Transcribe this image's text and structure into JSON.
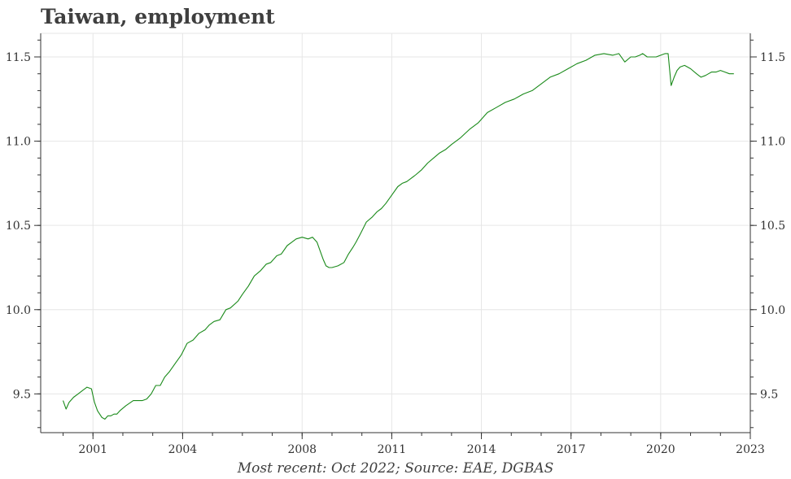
{
  "chart_data": {
    "type": "line",
    "title": "Taiwan, employment",
    "caption": "Most recent: Oct 2022; Source: EAE, DGBAS",
    "xlim": [
      1999.25,
      2023.0
    ],
    "ylim": [
      9.27,
      11.64
    ],
    "x_ticks": [
      2001,
      2004,
      2008,
      2011,
      2014,
      2017,
      2020,
      2023
    ],
    "y_ticks": [
      9.5,
      10.0,
      10.5,
      11.0,
      11.5
    ],
    "y_tick_labels": [
      "9.5",
      "10.0",
      "10.5",
      "11.0",
      "11.5"
    ],
    "grid": true,
    "line_color": "#1a8a1a",
    "series": [
      {
        "x": [
          2000.0,
          2000.1,
          2000.2,
          2000.35,
          2000.5,
          2000.65,
          2000.8,
          2000.95,
          2001.05,
          2001.15,
          2001.3,
          2001.4,
          2001.5,
          2001.6,
          2001.7,
          2001.8,
          2001.9,
          2002.1,
          2002.35,
          2002.5,
          2002.65,
          2002.8,
          2002.95,
          2003.1,
          2003.25,
          2003.4,
          2003.55,
          2003.75,
          2003.95,
          2004.15,
          2004.35,
          2004.55,
          2004.75,
          2004.9,
          2005.05,
          2005.25,
          2005.45,
          2005.6,
          2005.85,
          2006.0,
          2006.2,
          2006.4,
          2006.6,
          2006.8,
          2006.95,
          2007.15,
          2007.3,
          2007.5,
          2007.65,
          2007.8,
          2008.0,
          2008.2,
          2008.35,
          2008.5,
          2008.6,
          2008.7,
          2008.8,
          2008.9,
          2009.0,
          2009.2,
          2009.4,
          2009.55,
          2009.7,
          2009.8,
          2009.95,
          2010.15,
          2010.35,
          2010.5,
          2010.65,
          2010.8,
          2011.0,
          2011.2,
          2011.35,
          2011.5,
          2011.65,
          2011.8,
          2012.0,
          2012.2,
          2012.4,
          2012.6,
          2012.8,
          2013.0,
          2013.3,
          2013.6,
          2013.9,
          2014.2,
          2014.5,
          2014.8,
          2015.1,
          2015.4,
          2015.7,
          2016.0,
          2016.3,
          2016.6,
          2016.9,
          2017.2,
          2017.5,
          2017.8,
          2018.1,
          2018.4,
          2018.6,
          2018.8,
          2019.0,
          2019.15,
          2019.3,
          2019.4,
          2019.55,
          2019.7,
          2019.85,
          2020.0,
          2020.15,
          2020.25,
          2020.35,
          2020.45,
          2020.55,
          2020.65,
          2020.8,
          2021.0,
          2021.2,
          2021.35,
          2021.5,
          2021.6,
          2021.7,
          2021.85,
          2022.0,
          2022.15,
          2022.3,
          2022.45
        ],
        "y": [
          9.46,
          9.41,
          9.45,
          9.48,
          9.5,
          9.52,
          9.54,
          9.53,
          9.45,
          9.4,
          9.36,
          9.35,
          9.37,
          9.37,
          9.38,
          9.38,
          9.4,
          9.43,
          9.46,
          9.46,
          9.46,
          9.47,
          9.5,
          9.55,
          9.55,
          9.6,
          9.63,
          9.68,
          9.73,
          9.8,
          9.82,
          9.86,
          9.88,
          9.91,
          9.93,
          9.94,
          10.0,
          10.01,
          10.05,
          10.09,
          10.14,
          10.2,
          10.23,
          10.27,
          10.28,
          10.32,
          10.33,
          10.38,
          10.4,
          10.42,
          10.43,
          10.42,
          10.43,
          10.4,
          10.35,
          10.3,
          10.26,
          10.25,
          10.25,
          10.26,
          10.28,
          10.33,
          10.37,
          10.4,
          10.45,
          10.52,
          10.55,
          10.58,
          10.6,
          10.63,
          10.68,
          10.73,
          10.75,
          10.76,
          10.78,
          10.8,
          10.83,
          10.87,
          10.9,
          10.93,
          10.95,
          10.98,
          11.02,
          11.07,
          11.11,
          11.17,
          11.2,
          11.23,
          11.25,
          11.28,
          11.3,
          11.34,
          11.38,
          11.4,
          11.43,
          11.46,
          11.48,
          11.51,
          11.52,
          11.51,
          11.52,
          11.47,
          11.5,
          11.5,
          11.51,
          11.52,
          11.5,
          11.5,
          11.5,
          11.51,
          11.52,
          11.52,
          11.33,
          11.38,
          11.42,
          11.44,
          11.45,
          11.43,
          11.4,
          11.38,
          11.39,
          11.4,
          11.41,
          11.41,
          11.42,
          11.41,
          11.4,
          11.4
        ]
      }
    ]
  }
}
